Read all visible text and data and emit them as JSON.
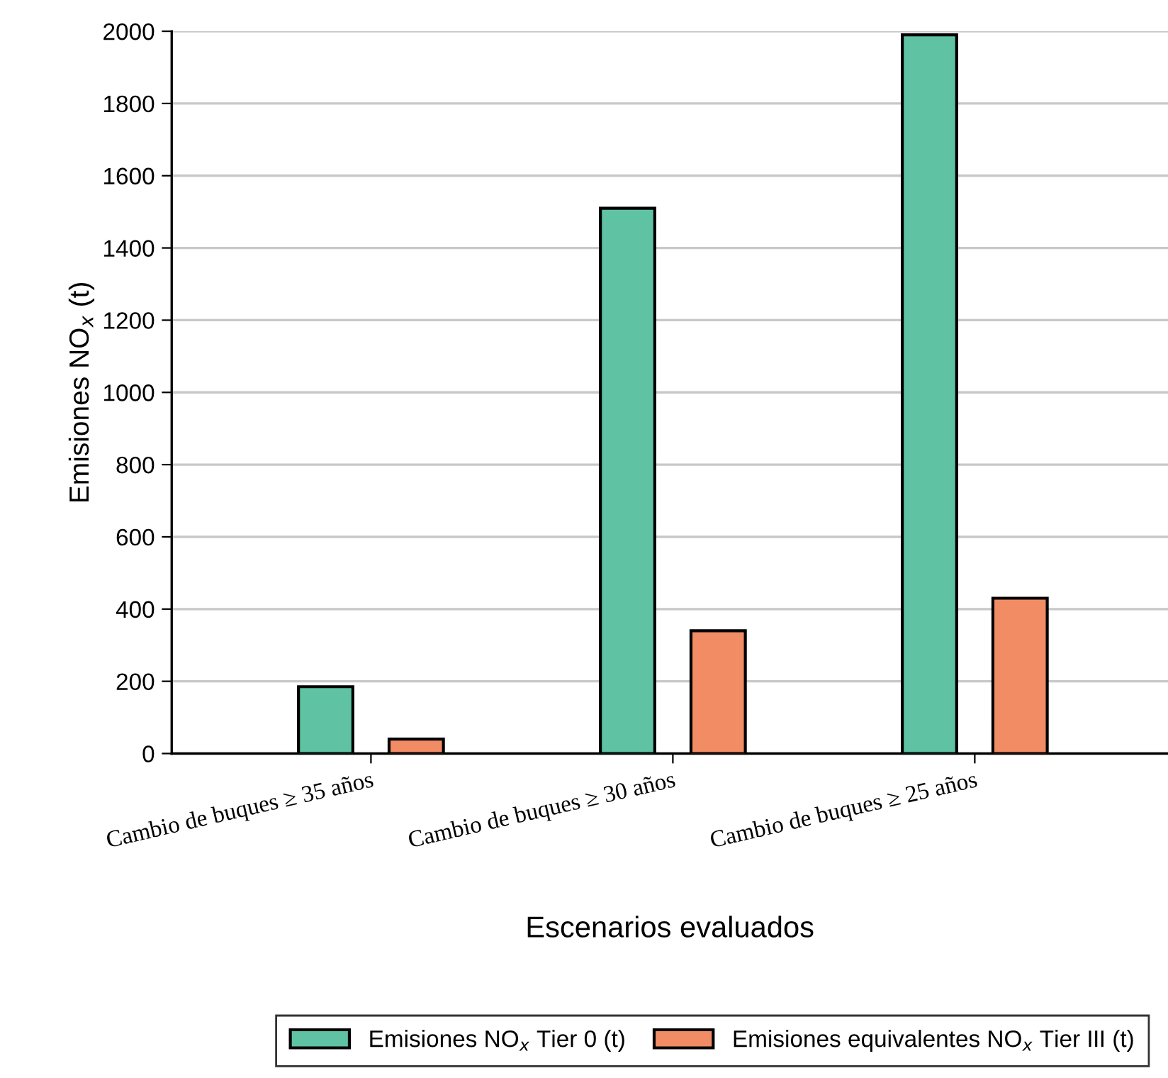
{
  "chart_data": {
    "type": "bar",
    "xlabel": "Escenarios evaluados",
    "ylabel": "Emisiones NO$_{x}$ (t)",
    "categories": [
      "Cambio de buques ≥ 35 años",
      "Cambio de buques ≥ 30 años",
      "Cambio de buques ≥ 25 años"
    ],
    "series": [
      {
        "name": "Emisiones NO$_{x}$ Tier 0 (t)",
        "color": "#5fc2a3",
        "values": [
          185,
          1510,
          1990
        ]
      },
      {
        "name": "Emisiones equivalentes NO$_{x}$ Tier III (t)",
        "color": "#f28c65",
        "values": [
          40,
          340,
          430
        ]
      }
    ],
    "ylim": [
      0,
      2000
    ],
    "yticks": [
      0,
      200,
      400,
      600,
      800,
      1000,
      1200,
      1400,
      1600,
      1800,
      2000
    ],
    "grid": "y",
    "legend": "bottom"
  }
}
